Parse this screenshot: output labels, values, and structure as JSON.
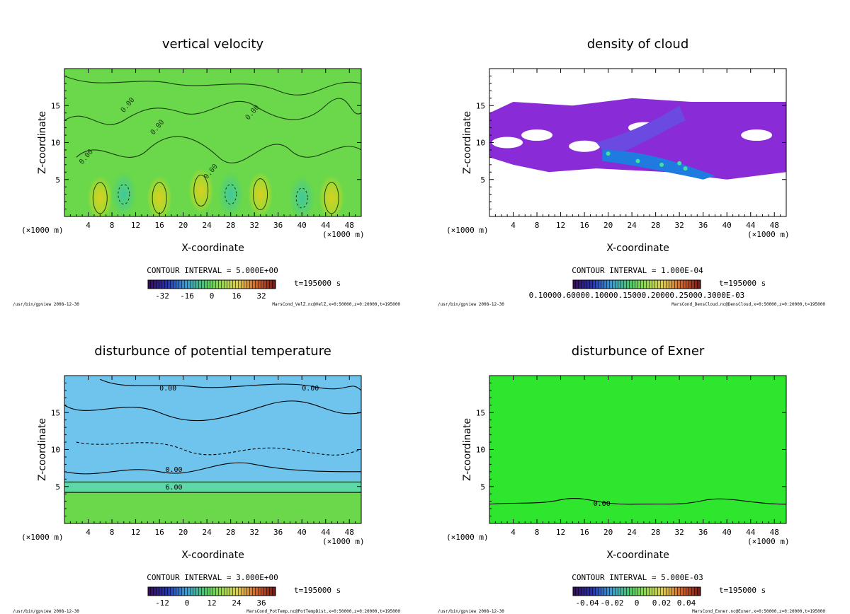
{
  "chart_data": [
    {
      "type": "heatmap",
      "title": "vertical velocity",
      "xlabel": "X-coordinate",
      "ylabel": "Z-coordinate",
      "x_unit_left": "(×1000 m)",
      "x_unit_right": "(×1000 m)",
      "xlim": [
        0,
        50
      ],
      "ylim": [
        0,
        20
      ],
      "xticks": [
        "4",
        "8",
        "12",
        "16",
        "20",
        "24",
        "28",
        "32",
        "36",
        "40",
        "44",
        "48"
      ],
      "yticks": [
        "5",
        "10",
        "15"
      ],
      "contour_interval": "CONTOUR INTERVAL = 5.000E+00",
      "colorbar_ticks": [
        "-32",
        "-16",
        "0",
        "16",
        "32"
      ],
      "time": "t=195000 s",
      "footer_left": "/usr/bin/gpview  2008-12-30",
      "footer_right": "MarsCond_VelZ.nc@VelZ,x=0:50000,z=0:20000,t=195000",
      "contour_labels": [
        "0.00",
        "0.00",
        "0.00",
        "0.00",
        "0.00"
      ],
      "colors": {
        "background": "#6ad84a",
        "line": "#1a3d12"
      }
    },
    {
      "type": "heatmap",
      "title": "density of cloud",
      "xlabel": "X-coordinate",
      "ylabel": "Z-coordinate",
      "x_unit_left": "(×1000 m)",
      "x_unit_right": "(×1000 m)",
      "xlim": [
        0,
        50
      ],
      "ylim": [
        0,
        20
      ],
      "xticks": [
        "4",
        "8",
        "12",
        "16",
        "20",
        "24",
        "28",
        "32",
        "36",
        "40",
        "44",
        "48"
      ],
      "yticks": [
        "5",
        "10",
        "15"
      ],
      "contour_interval": "CONTOUR INTERVAL = 1.000E-04",
      "colorbar_ticks_text": "0.10000.60000.10000.15000.20000.25000.3000E-03",
      "time": "t=195000 s",
      "footer_left": "/usr/bin/gpview  2008-12-30",
      "footer_right": "MarsCond_DensCloud.nc@DensCloud,x=0:50000,z=0:20000,t=195000",
      "contour_labels": [],
      "colors": {
        "background": "#ffffff",
        "cloud": "#8a2bd8",
        "core": "#1f7be0"
      }
    },
    {
      "type": "heatmap",
      "title": "disturbunce of potential temperature",
      "xlabel": "X-coordinate",
      "ylabel": "Z-coordinate",
      "x_unit_left": "(×1000 m)",
      "x_unit_right": "(×1000 m)",
      "xlim": [
        0,
        50
      ],
      "ylim": [
        0,
        20
      ],
      "xticks": [
        "4",
        "8",
        "12",
        "16",
        "20",
        "24",
        "28",
        "32",
        "36",
        "40",
        "44",
        "48"
      ],
      "yticks": [
        "5",
        "10",
        "15"
      ],
      "contour_interval": "CONTOUR INTERVAL = 3.000E+00",
      "colorbar_ticks": [
        "-12",
        "0",
        "12",
        "24",
        "36"
      ],
      "time": "t=195000 s",
      "footer_left": "/usr/bin/gpview  2008-12-30",
      "footer_right": "MarsCond_PotTemp.nc@PotTempDist,x=0:50000,z=0:20000,t=195000",
      "contour_labels": [
        "0.00",
        "0.00",
        "0.00",
        "6.00"
      ],
      "colors": {
        "upper": "#6fc4ee",
        "lower": "#6ad84a"
      }
    },
    {
      "type": "heatmap",
      "title": "disturbunce of Exner",
      "xlabel": "X-coordinate",
      "ylabel": "Z-coordinate",
      "x_unit_left": "(×1000 m)",
      "x_unit_right": "(×1000 m)",
      "xlim": [
        0,
        50
      ],
      "ylim": [
        0,
        20
      ],
      "xticks": [
        "4",
        "8",
        "12",
        "16",
        "20",
        "24",
        "28",
        "32",
        "36",
        "40",
        "44",
        "48"
      ],
      "yticks": [
        "5",
        "10",
        "15"
      ],
      "contour_interval": "CONTOUR INTERVAL = 5.000E-03",
      "colorbar_ticks": [
        "-0.04",
        "-0.02",
        "0",
        "0.02",
        "0.04"
      ],
      "time": "t=195000 s",
      "footer_left": "/usr/bin/gpview  2008-12-30",
      "footer_right": "MarsCond_Exner.nc@Exner,x=0:50000,z=0:20000,t=195000",
      "contour_labels": [
        "0.00"
      ],
      "colors": {
        "background": "#2ee62e"
      }
    }
  ]
}
